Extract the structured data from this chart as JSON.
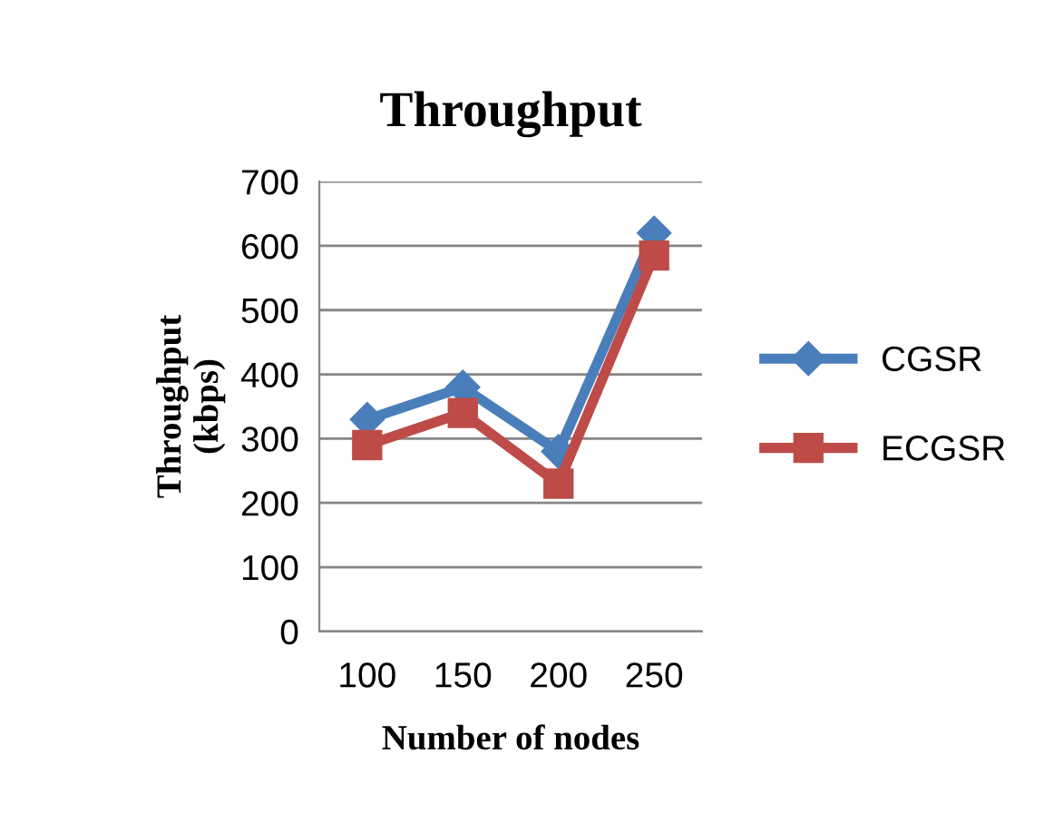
{
  "chart_data": {
    "type": "line",
    "title": "Throughput",
    "xlabel": "Number of nodes",
    "ylabel": "Throughput\n(kbps)",
    "categories": [
      "100",
      "150",
      "200",
      "250"
    ],
    "series": [
      {
        "name": "CGSR",
        "color": "#4a7ebb",
        "marker": "diamond",
        "values": [
          330,
          380,
          280,
          620
        ]
      },
      {
        "name": "ECGSR",
        "color": "#be4b48",
        "marker": "square",
        "values": [
          290,
          340,
          230,
          585
        ]
      }
    ],
    "ylim": [
      0,
      700
    ],
    "yticks": [
      0,
      100,
      200,
      300,
      400,
      500,
      600,
      700
    ],
    "grid": "y",
    "legend": "right"
  }
}
